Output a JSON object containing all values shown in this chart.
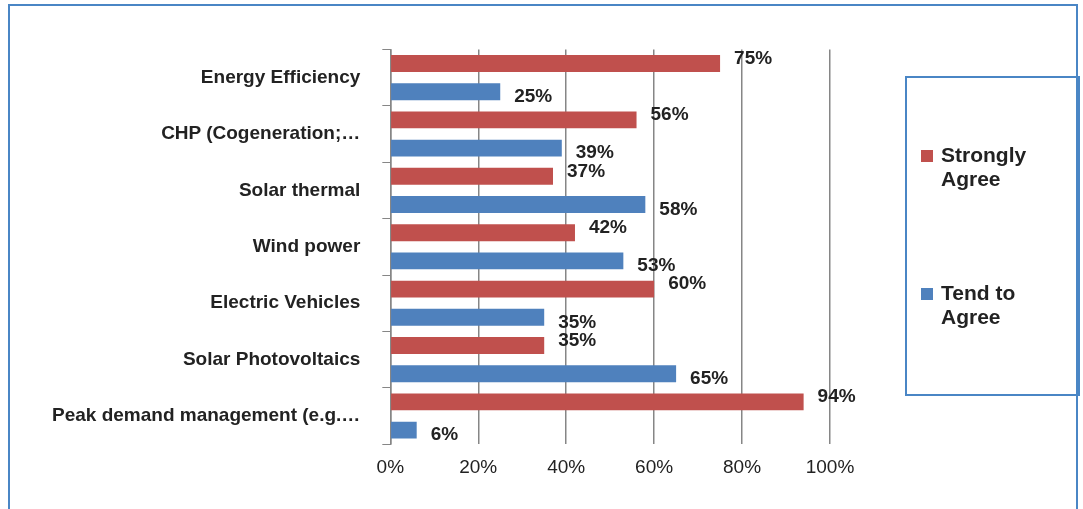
{
  "chart_data": {
    "type": "bar",
    "orientation": "horizontal",
    "categories": [
      "Energy Efficiency",
      "CHP (Cogeneration;…",
      "Solar thermal",
      "Wind power",
      "Electric Vehicles",
      "Solar Photovoltaics",
      "Peak demand management (e.g.…"
    ],
    "series": [
      {
        "name": "Strongly Agree",
        "color": "#c0504d",
        "values": [
          75,
          56,
          37,
          42,
          60,
          35,
          94
        ],
        "value_labels": [
          "75%",
          "56%",
          "37%",
          "42%",
          "60%",
          "35%",
          "94%"
        ]
      },
      {
        "name": "Tend to Agree",
        "color": "#4f81bd",
        "values": [
          25,
          39,
          58,
          53,
          35,
          65,
          6
        ],
        "value_labels": [
          "25%",
          "39%",
          "58%",
          "53%",
          "35%",
          "65%",
          "6%"
        ]
      }
    ],
    "xlim": [
      0,
      100
    ],
    "xticks": [
      {
        "value": 0,
        "label": "0%"
      },
      {
        "value": 20,
        "label": "20%"
      },
      {
        "value": 40,
        "label": "40%"
      },
      {
        "value": 60,
        "label": "60%"
      },
      {
        "value": 80,
        "label": "80%"
      },
      {
        "value": 100,
        "label": "100%"
      }
    ],
    "grid": "x",
    "legend": "right"
  }
}
